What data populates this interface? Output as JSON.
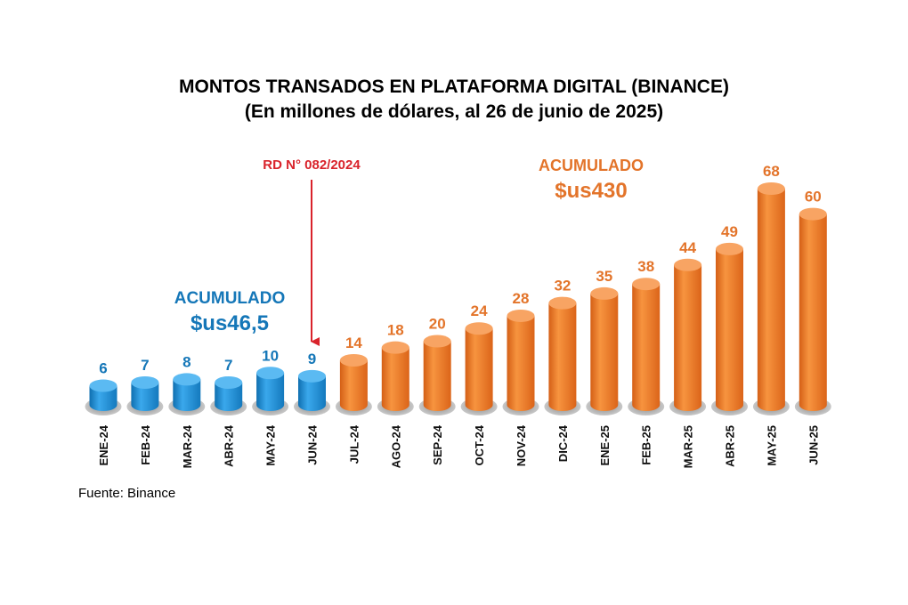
{
  "chart_data": {
    "type": "bar",
    "title": "MONTOS TRANSADOS EN PLATAFORMA DIGITAL (BINANCE)",
    "subtitle": "(En millones de dólares, al 26 de junio de 2025)",
    "categories": [
      "ENE-24",
      "FEB-24",
      "MAR-24",
      "ABR-24",
      "MAY-24",
      "JUN-24",
      "JUL-24",
      "AGO-24",
      "SEP-24",
      "OCT-24",
      "NOV-24",
      "DIC-24",
      "ENE-25",
      "FEB-25",
      "MAR-25",
      "ABR-25",
      "MAY-25",
      "JUN-25"
    ],
    "values": [
      6,
      7,
      8,
      7,
      10,
      9,
      14,
      18,
      20,
      24,
      28,
      32,
      35,
      38,
      44,
      49,
      68,
      60
    ],
    "data_labels": [
      "6",
      "7",
      "8",
      "7",
      "10",
      "9",
      "14",
      "18",
      "20",
      "24",
      "28",
      "32",
      "35",
      "38",
      "44",
      "49",
      "68",
      "60"
    ],
    "bar_colors": [
      "#1b8fd6",
      "#1b8fd6",
      "#1b8fd6",
      "#1b8fd6",
      "#1b8fd6",
      "#1b8fd6",
      "#ee7a2a",
      "#ee7a2a",
      "#ee7a2a",
      "#ee7a2a",
      "#ee7a2a",
      "#ee7a2a",
      "#ee7a2a",
      "#ee7a2a",
      "#ee7a2a",
      "#ee7a2a",
      "#ee7a2a",
      "#ee7a2a"
    ],
    "label_colors": {
      "blue": "#1577b8",
      "orange": "#e3742a"
    },
    "ylim": [
      0,
      68
    ],
    "annotations": {
      "marker": {
        "text": "RD N° 082/2024",
        "after_category": "MAY-24",
        "color": "#d9232b"
      },
      "blue_total": {
        "label": "ACUMULADO",
        "value": "$us46,5"
      },
      "orange_total": {
        "label": "ACUMULADO",
        "value": "$us430"
      }
    }
  },
  "source": "Fuente: Binance"
}
